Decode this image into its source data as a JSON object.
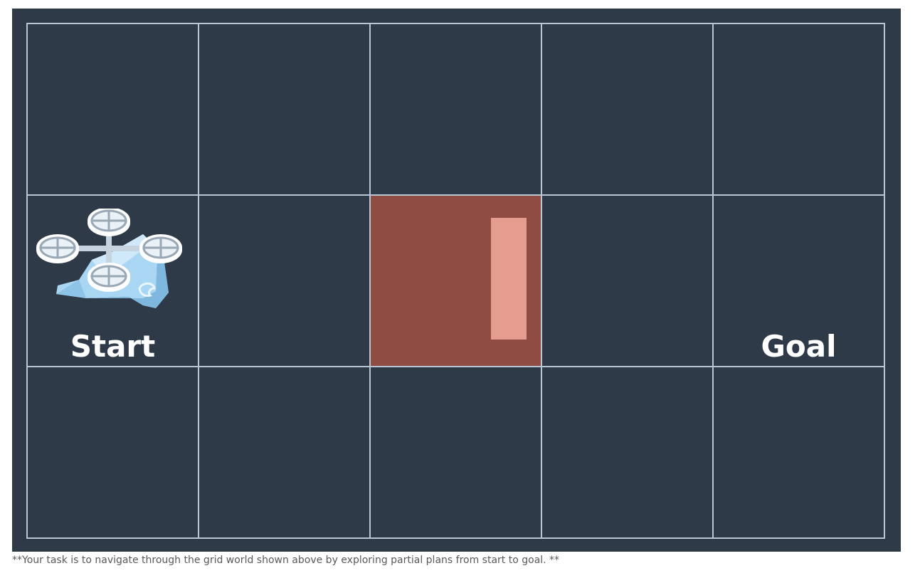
{
  "grid": {
    "rows": 3,
    "cols": 5,
    "start": {
      "row": 1,
      "col": 0,
      "label": "Start"
    },
    "goal": {
      "row": 1,
      "col": 4,
      "label": "Goal"
    },
    "obstacles": [
      {
        "row": 1,
        "col": 2
      }
    ]
  },
  "agent": {
    "icon": "quadcopter-drone-icon",
    "row": 1,
    "col": 0
  },
  "caption": "**Your task is to navigate through the grid world shown above by exploring partial plans from start to goal. **",
  "colors": {
    "background": "#2e3a48",
    "grid_line": "#b9c6d4",
    "obstacle": "#8e4c43",
    "obstacle_inner": "#e59d8f",
    "label": "#ffffff"
  }
}
